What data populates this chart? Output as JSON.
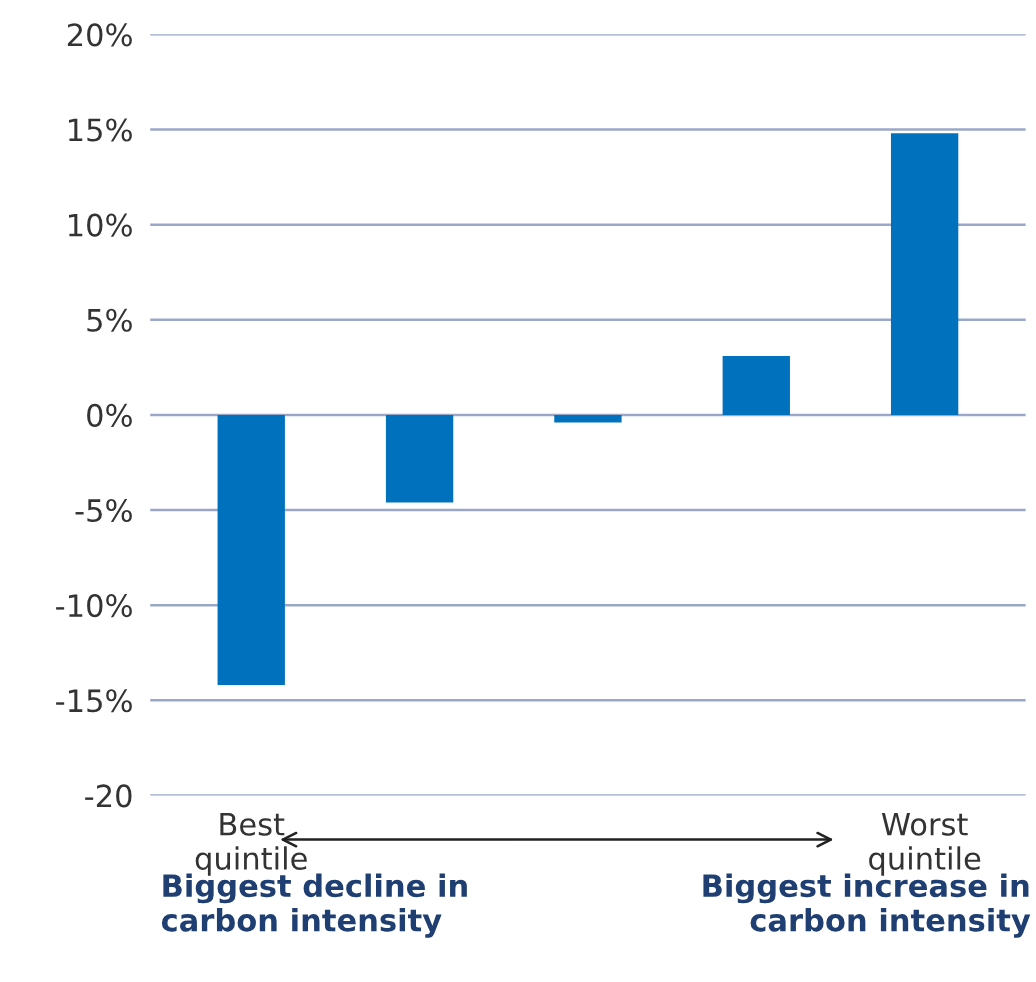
{
  "chart_data": {
    "type": "bar",
    "categories": [
      "Best\nquintile",
      null,
      null,
      null,
      "Worst\nquintile"
    ],
    "values": [
      -14.2,
      -4.6,
      -0.4,
      3.1,
      14.8
    ],
    "color": "#0071bc",
    "ylim": [
      -20,
      20
    ],
    "yticks": [
      {
        "value": -20,
        "label": "-20"
      },
      {
        "value": -15,
        "label": "-15%"
      },
      {
        "value": -10,
        "label": "-10%"
      },
      {
        "value": -5,
        "label": "-5%"
      },
      {
        "value": 0,
        "label": "0%"
      },
      {
        "value": 5,
        "label": "5%"
      },
      {
        "value": 10,
        "label": "10%"
      },
      {
        "value": 15,
        "label": "15%"
      },
      {
        "value": 20,
        "label": "20%"
      }
    ],
    "grid": "y",
    "annotations": [
      "Biggest decline in\ncarbon intensity",
      "Biggest increase in\ncarbon intensity"
    ]
  }
}
